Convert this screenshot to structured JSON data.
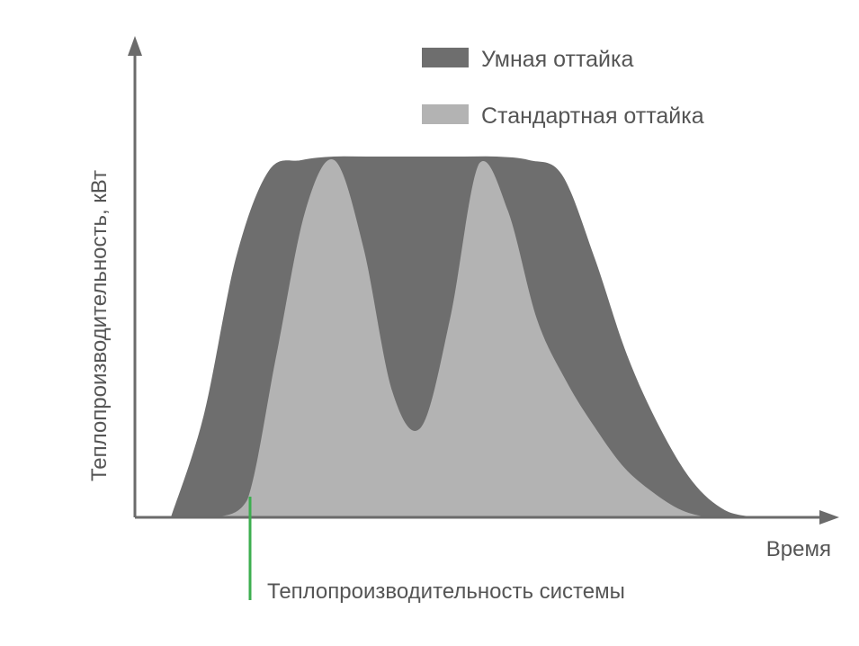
{
  "chart_data": {
    "type": "area",
    "title": "",
    "xlabel": "Время",
    "ylabel": "Теплопроизводительность, кВт",
    "x": [
      0,
      1,
      2,
      3,
      4,
      5,
      6,
      7,
      8,
      9,
      10,
      11,
      12,
      13,
      14,
      15,
      16,
      17,
      18
    ],
    "series": [
      {
        "name": "Умная оттайка",
        "color": "#6e6e6e",
        "values": [
          0,
          0.28,
          0.72,
          0.96,
          0.99,
          1.0,
          1.0,
          1.0,
          1.0,
          1.0,
          1.0,
          0.99,
          0.95,
          0.72,
          0.45,
          0.25,
          0.1,
          0.02,
          0
        ]
      },
      {
        "name": "Стандартная оттайка",
        "color": "#b3b3b3",
        "values": [
          0,
          0.05,
          0.45,
          0.85,
          0.99,
          0.75,
          0.35,
          0.25,
          0.55,
          0.98,
          0.85,
          0.55,
          0.38,
          0.25,
          0.14,
          0.07,
          0.02,
          0,
          0
        ]
      }
    ],
    "annotations": [
      {
        "label": "Теплопроизводительность системы",
        "color": "#3cae4f"
      }
    ],
    "grid": false,
    "legend": "top-right"
  }
}
